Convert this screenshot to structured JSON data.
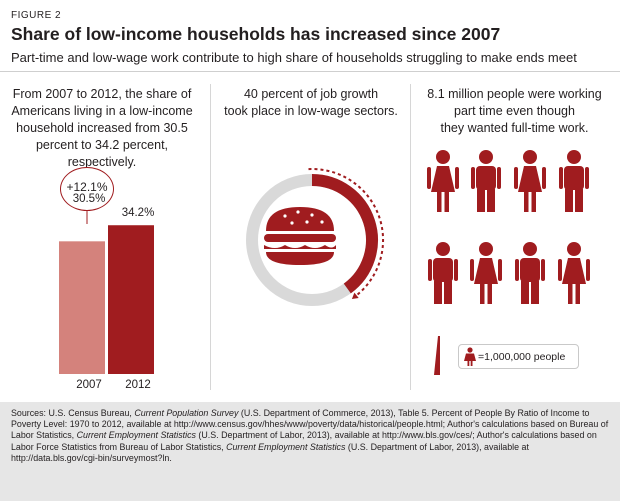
{
  "figure_label": "FIGURE 2",
  "title": "Share of low-income households has increased since 2007",
  "subtitle": "Part-time and low-wage work contribute to high share of households struggling to make ends meet",
  "panel1": {
    "text_lines": [
      "From 2007 to 2012, the share of",
      "Americans living in a low-income",
      "household increased from 30.5",
      "percent to 34.2 percent, respectively."
    ],
    "change_label": "+12.1%"
  },
  "panel2": {
    "text_lines": [
      "40 percent of job growth",
      "took place in low-wage sectors."
    ],
    "icon": "hamburger-icon"
  },
  "panel3": {
    "text_lines": [
      "8.1 million people were working",
      "part time even though",
      "they wanted full-time work."
    ],
    "people_icons": [
      "woman",
      "man",
      "woman",
      "man",
      "man",
      "woman",
      "man",
      "woman"
    ],
    "legend_label": "=1,000,000 people"
  },
  "colors": {
    "dark_red": "#a01c1f",
    "light_red": "#d4827c",
    "gray": "#d9d9d9",
    "footer_bg": "#e6e6e6"
  },
  "chart_data": [
    {
      "type": "bar",
      "categories": [
        "2007",
        "2012"
      ],
      "values": [
        30.5,
        34.2
      ],
      "value_labels": [
        "30.5%",
        "34.2%"
      ],
      "annotation": "+12.1%"
    },
    {
      "type": "pie",
      "values": [
        40,
        60
      ],
      "description_value_label": "40 percent of job growth"
    },
    {
      "type": "pictograph",
      "value": 8.1,
      "icon_unit": 1000000,
      "icon_count": 8.1,
      "legend": "=1,000,000 people"
    }
  ],
  "sources": {
    "s1": "Sources: U.S. Census Bureau, ",
    "s1_it": "Current Population Survey",
    "s2": " (U.S. Department of Commerce, 2013), Table 5. Percent of People By Ratio of Income to Poverty Level: 1970 to 2012, available at http://www.census.gov/hhes/www/poverty/data/historical/people.html; Author's calculations based on Bureau of Labor Statistics, ",
    "s2_it": "Current Employment Statistics",
    "s3": " (U.S. Department of Labor, 2013), available at http://www.bls.gov/ces/; Author's calculations based on Labor Force Statistics from Bureau of Labor Statistics, ",
    "s3_it": "Current Employment Statistics",
    "s4": " (U.S. Department of Labor, 2013), available at http://data.bls.gov/cgi-bin/surveymost?ln."
  }
}
